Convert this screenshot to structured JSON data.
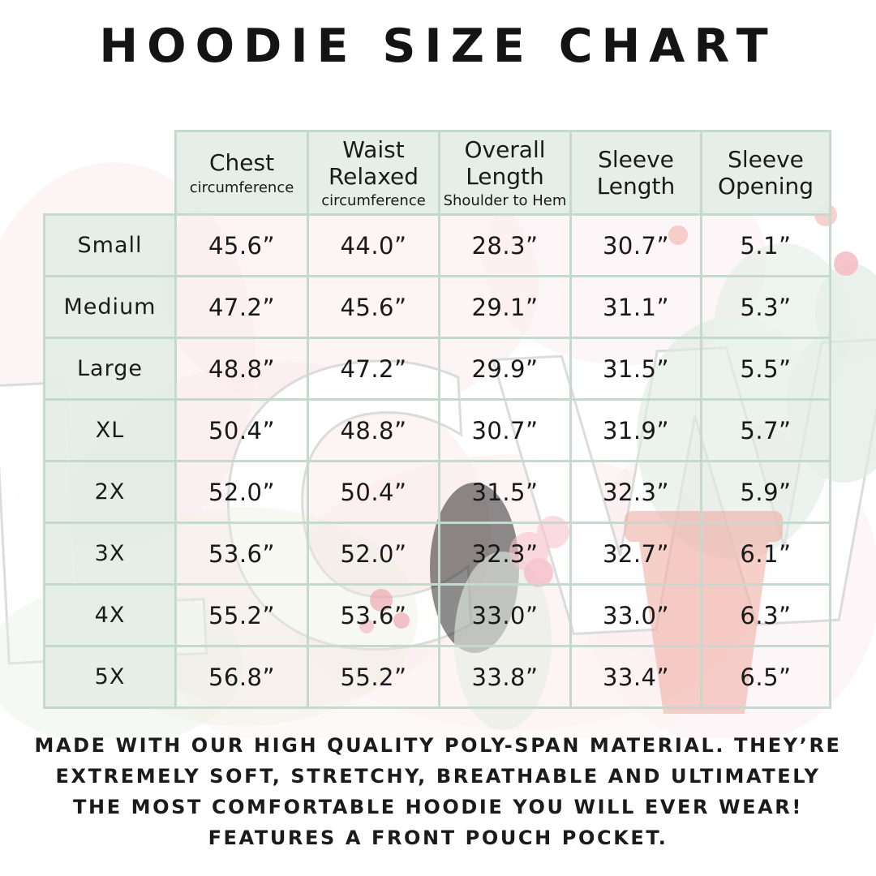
{
  "title": "HOODIE SIZE CHART",
  "table": {
    "columns": [
      {
        "label": "Chest",
        "sub": "circumference"
      },
      {
        "label": "Waist Relaxed",
        "sub": "circumference"
      },
      {
        "label": "Overall Length",
        "sub": "Shoulder to Hem"
      },
      {
        "label": "Sleeve Length",
        "sub": ""
      },
      {
        "label": "Sleeve Opening",
        "sub": ""
      }
    ],
    "rows": [
      {
        "size": "Small",
        "values": [
          "45.6”",
          "44.0”",
          "28.3”",
          "30.7”",
          "5.1”"
        ]
      },
      {
        "size": "Medium",
        "values": [
          "47.2”",
          "45.6”",
          "29.1”",
          "31.1”",
          "5.3”"
        ]
      },
      {
        "size": "Large",
        "values": [
          "48.8”",
          "47.2”",
          "29.9”",
          "31.5”",
          "5.5”"
        ]
      },
      {
        "size": "XL",
        "values": [
          "50.4”",
          "48.8”",
          "30.7”",
          "31.9”",
          "5.7”"
        ]
      },
      {
        "size": "2X",
        "values": [
          "52.0”",
          "50.4”",
          "31.5”",
          "32.3”",
          "5.9”"
        ]
      },
      {
        "size": "3X",
        "values": [
          "53.6”",
          "52.0”",
          "32.3”",
          "32.7”",
          "6.1”"
        ]
      },
      {
        "size": "4X",
        "values": [
          "55.2”",
          "53.6”",
          "33.0”",
          "33.0”",
          "6.3”"
        ]
      },
      {
        "size": "5X",
        "values": [
          "56.8”",
          "55.2”",
          "33.8”",
          "33.4”",
          "6.5”"
        ]
      }
    ]
  },
  "description": {
    "lines": [
      "MADE WITH OUR HIGH QUALITY POLY-SPAN MATERIAL. THEY’RE",
      "EXTREMELY SOFT, STRETCHY, BREATHABLE AND ULTIMATELY",
      "THE MOST COMFORTABLE HOODIE YOU WILL EVER WEAR!",
      "FEATURES A FRONT POUCH POCKET."
    ]
  },
  "watermark": {
    "letters": "LCW"
  },
  "colors": {
    "cell_green": "#e3ede7",
    "border_green": "#c5dacd",
    "text": "#1a1a1a",
    "watermark_pink": "#f7dde2",
    "watermark_green": "#dfeae3",
    "watermark_red": "#f0b0a6"
  }
}
